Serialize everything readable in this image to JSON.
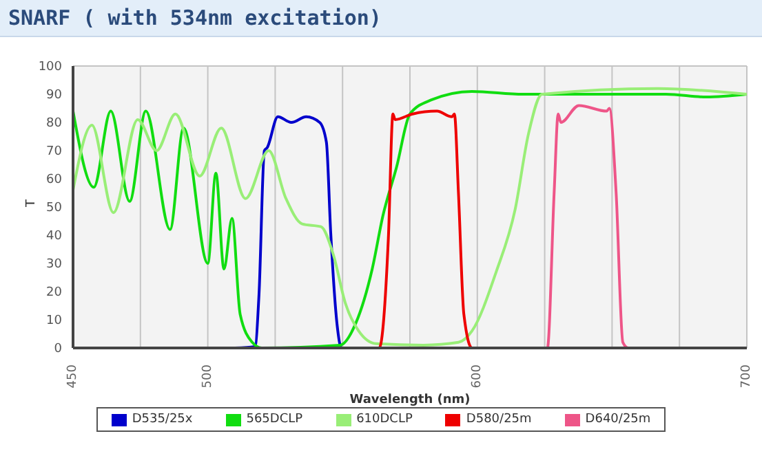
{
  "chart_data": {
    "type": "line",
    "title": "SNARF ( with 534nm excitation)",
    "xlabel": "Wavelength (nm)",
    "ylabel": "T",
    "xlim": [
      450,
      700
    ],
    "xticks": [
      450,
      {
        "value": 475,
        "label": null
      },
      500,
      {
        "value": 525,
        "label": null
      },
      {
        "value": 550,
        "label": null
      },
      {
        "value": 575,
        "label": null
      },
      600,
      {
        "value": 625,
        "label": null
      },
      {
        "value": 650,
        "label": null
      },
      {
        "value": 675,
        "label": null
      },
      700
    ],
    "ylim": [
      0,
      100
    ],
    "yticks": [
      0,
      10,
      20,
      30,
      40,
      50,
      60,
      70,
      80,
      90,
      100
    ],
    "grid": true,
    "legend": "bottom",
    "marker": "none",
    "line_style": "solid",
    "series": [
      {
        "name": "D535/25x",
        "color": "#0000cc",
        "x": [
          510,
          517.5,
          519,
          521,
          522,
          526,
          531,
          536.5,
          541.5,
          544,
          545.6,
          548,
          549.6,
          560
        ],
        "values": [
          0,
          0.5,
          19,
          70,
          71,
          82,
          80,
          82,
          80,
          73,
          41,
          8,
          0,
          0
        ]
      },
      {
        "name": "565DCLP",
        "color": "#11dd11",
        "x": [
          450,
          457.7,
          464,
          471,
          477,
          486,
          491,
          500,
          503,
          506,
          509,
          512,
          516.5,
          520,
          549,
          555,
          561,
          565,
          570,
          575,
          583,
          598,
          617,
          640,
          670,
          685,
          700
        ],
        "values": [
          84,
          57,
          84,
          52,
          84,
          42,
          78,
          30,
          62,
          28,
          46,
          12,
          2,
          0,
          1,
          9,
          28,
          47,
          64,
          83,
          88,
          91,
          90,
          90,
          90,
          89,
          90
        ]
      },
      {
        "name": "610DCLP",
        "color": "#99ee77",
        "x": [
          450,
          457,
          465,
          474,
          481,
          488,
          497,
          505,
          514,
          522.6,
          529,
          535,
          542,
          546.6,
          551,
          556,
          562.5,
          580,
          593,
          598,
          607,
          614,
          619,
          624,
          667,
          700
        ],
        "values": [
          56,
          79,
          48,
          81,
          70,
          83,
          61,
          78,
          53,
          70,
          53,
          44,
          43,
          33,
          16,
          6,
          1.5,
          1,
          2,
          6,
          27,
          49,
          76,
          90,
          92,
          90
        ]
      },
      {
        "name": "D580/25m",
        "color": "#ee0000",
        "x": [
          555,
          563.6,
          567,
          568.7,
          569.5,
          576,
          585,
          590.6,
          591.5,
          593,
          595,
          598,
          610
        ],
        "values": [
          0,
          0,
          39,
          83,
          81,
          83,
          84,
          82,
          83,
          55,
          12,
          0,
          0
        ]
      },
      {
        "name": "D640/25m",
        "color": "#ee5588",
        "x": [
          615,
          626,
          628.5,
          630,
          631,
          637.7,
          648,
          649,
          651.5,
          654,
          656,
          670
        ],
        "values": [
          0,
          0,
          55,
          83,
          80,
          86,
          84,
          85,
          55,
          2,
          0,
          0
        ]
      }
    ]
  }
}
